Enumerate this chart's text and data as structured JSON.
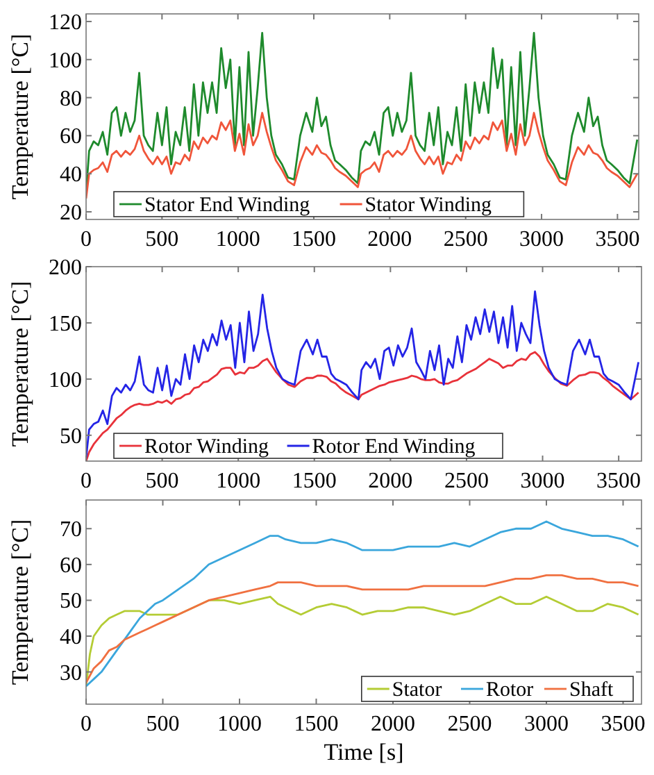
{
  "chart_data": [
    {
      "type": "line",
      "ylabel": "Temperature [°C]",
      "xlim": [
        0,
        3640
      ],
      "xticks": [
        0,
        500,
        1000,
        1500,
        2000,
        2500,
        3000,
        3500
      ],
      "ylim": [
        16,
        124
      ],
      "yticks": [
        20,
        40,
        60,
        80,
        100,
        120
      ],
      "legend": "bottom left",
      "x": [
        0,
        20,
        50,
        80,
        110,
        140,
        170,
        200,
        230,
        260,
        290,
        320,
        350,
        380,
        410,
        440,
        470,
        500,
        530,
        560,
        590,
        620,
        650,
        680,
        710,
        740,
        770,
        800,
        830,
        860,
        890,
        920,
        950,
        980,
        1010,
        1040,
        1070,
        1100,
        1130,
        1160,
        1190,
        1220,
        1250,
        1290,
        1330,
        1370,
        1410,
        1450,
        1490,
        1520,
        1550,
        1580,
        1610,
        1640,
        1670,
        1710,
        1750,
        1790,
        1810,
        1840,
        1870,
        1900,
        1930,
        1960,
        1990,
        2020,
        2050,
        2080,
        2110,
        2140,
        2170,
        2200,
        2230,
        2260,
        2290,
        2320,
        2350,
        2380,
        2410,
        2440,
        2470,
        2500,
        2530,
        2560,
        2590,
        2620,
        2650,
        2680,
        2710,
        2740,
        2770,
        2800,
        2830,
        2860,
        2890,
        2920,
        2950,
        2980,
        3010,
        3040,
        3080,
        3120,
        3160,
        3200,
        3240,
        3280,
        3310,
        3340,
        3370,
        3400,
        3430,
        3460,
        3500,
        3540,
        3580,
        3630
      ],
      "series": [
        {
          "name": "Stator End Winding",
          "color": "#1e8a2c",
          "values": [
            30,
            52,
            57,
            55,
            62,
            50,
            72,
            75,
            60,
            72,
            62,
            68,
            93,
            60,
            55,
            52,
            72,
            55,
            75,
            45,
            62,
            55,
            75,
            52,
            87,
            60,
            88,
            72,
            88,
            72,
            106,
            85,
            100,
            55,
            96,
            55,
            104,
            60,
            85,
            114,
            80,
            60,
            50,
            45,
            38,
            37,
            60,
            72,
            62,
            80,
            65,
            70,
            55,
            47,
            45,
            42,
            38,
            35,
            52,
            57,
            55,
            62,
            50,
            72,
            75,
            60,
            72,
            62,
            68,
            93,
            60,
            55,
            52,
            72,
            55,
            75,
            45,
            62,
            55,
            75,
            52,
            87,
            60,
            88,
            72,
            88,
            72,
            106,
            85,
            100,
            55,
            96,
            55,
            104,
            60,
            85,
            114,
            80,
            60,
            50,
            45,
            38,
            37,
            60,
            72,
            62,
            80,
            65,
            70,
            55,
            47,
            45,
            42,
            38,
            35,
            58
          ]
        },
        {
          "name": "Stator Winding",
          "color": "#f0553a",
          "values": [
            27,
            40,
            42,
            43,
            46,
            41,
            50,
            52,
            49,
            52,
            50,
            53,
            60,
            52,
            48,
            45,
            49,
            45,
            49,
            40,
            46,
            45,
            50,
            47,
            57,
            53,
            59,
            56,
            60,
            58,
            67,
            63,
            68,
            52,
            61,
            50,
            66,
            55,
            60,
            72,
            62,
            54,
            47,
            42,
            36,
            34,
            46,
            54,
            50,
            55,
            51,
            50,
            47,
            43,
            41,
            39,
            36,
            33,
            40,
            42,
            43,
            46,
            41,
            50,
            52,
            49,
            52,
            50,
            53,
            60,
            52,
            48,
            45,
            49,
            45,
            49,
            40,
            46,
            45,
            50,
            47,
            57,
            53,
            59,
            56,
            60,
            58,
            67,
            63,
            68,
            52,
            61,
            50,
            66,
            55,
            60,
            72,
            62,
            54,
            47,
            42,
            36,
            34,
            46,
            54,
            50,
            55,
            51,
            50,
            47,
            43,
            41,
            39,
            36,
            33,
            40
          ]
        }
      ]
    },
    {
      "type": "line",
      "ylabel": "Temperature [°C]",
      "xlim": [
        0,
        3650
      ],
      "xticks": [
        0,
        500,
        1000,
        1500,
        2000,
        2500,
        3000,
        3500
      ],
      "ylim": [
        27,
        200
      ],
      "yticks": [
        50,
        100,
        150,
        200
      ],
      "legend": "bottom left",
      "x": [
        0,
        20,
        50,
        80,
        110,
        140,
        170,
        200,
        230,
        260,
        290,
        320,
        350,
        380,
        410,
        440,
        470,
        500,
        530,
        560,
        590,
        620,
        650,
        680,
        710,
        740,
        770,
        800,
        830,
        860,
        890,
        920,
        950,
        980,
        1010,
        1040,
        1070,
        1100,
        1130,
        1160,
        1190,
        1220,
        1250,
        1290,
        1330,
        1370,
        1410,
        1450,
        1490,
        1520,
        1550,
        1580,
        1610,
        1640,
        1670,
        1710,
        1750,
        1790,
        1810,
        1840,
        1870,
        1900,
        1930,
        1960,
        1990,
        2020,
        2050,
        2080,
        2110,
        2140,
        2170,
        2200,
        2230,
        2260,
        2290,
        2320,
        2350,
        2380,
        2410,
        2440,
        2470,
        2500,
        2530,
        2560,
        2590,
        2620,
        2650,
        2680,
        2710,
        2740,
        2770,
        2800,
        2830,
        2860,
        2890,
        2920,
        2950,
        2980,
        3010,
        3040,
        3080,
        3120,
        3160,
        3200,
        3240,
        3280,
        3310,
        3340,
        3370,
        3400,
        3430,
        3460,
        3500,
        3540,
        3580,
        3630
      ],
      "series": [
        {
          "name": "Rotor Winding",
          "color": "#e8323a",
          "values": [
            27,
            35,
            42,
            47,
            52,
            55,
            60,
            65,
            68,
            72,
            75,
            77,
            78,
            77,
            77,
            78,
            80,
            79,
            81,
            78,
            82,
            83,
            86,
            87,
            92,
            93,
            97,
            98,
            101,
            104,
            109,
            110,
            110,
            104,
            106,
            105,
            110,
            110,
            112,
            116,
            118,
            112,
            106,
            100,
            95,
            93,
            98,
            101,
            101,
            103,
            103,
            102,
            98,
            96,
            92,
            88,
            85,
            82,
            86,
            88,
            90,
            92,
            94,
            95,
            97,
            98,
            99,
            100,
            101,
            103,
            102,
            100,
            99,
            99,
            100,
            97,
            96,
            96,
            98,
            99,
            102,
            105,
            107,
            109,
            112,
            115,
            118,
            116,
            114,
            110,
            112,
            112,
            116,
            118,
            117,
            122,
            124,
            120,
            113,
            107,
            101,
            96,
            94,
            99,
            103,
            104,
            106,
            106,
            105,
            101,
            98,
            94,
            90,
            86,
            82,
            88
          ]
        },
        {
          "name": "Rotor End Winding",
          "color": "#2424e6",
          "values": [
            30,
            55,
            60,
            62,
            72,
            60,
            85,
            92,
            88,
            95,
            90,
            98,
            120,
            95,
            90,
            88,
            110,
            90,
            112,
            85,
            100,
            95,
            122,
            100,
            130,
            115,
            135,
            125,
            140,
            130,
            152,
            135,
            148,
            110,
            150,
            115,
            160,
            125,
            140,
            175,
            145,
            125,
            110,
            100,
            97,
            95,
            125,
            135,
            122,
            135,
            120,
            120,
            105,
            100,
            98,
            95,
            88,
            82,
            108,
            115,
            110,
            118,
            100,
            125,
            128,
            112,
            130,
            120,
            128,
            145,
            115,
            108,
            100,
            125,
            108,
            130,
            95,
            118,
            110,
            138,
            115,
            148,
            135,
            155,
            140,
            162,
            142,
            160,
            132,
            155,
            128,
            165,
            125,
            150,
            140,
            132,
            178,
            148,
            125,
            110,
            100,
            97,
            95,
            125,
            135,
            122,
            135,
            120,
            120,
            105,
            100,
            98,
            95,
            88,
            82,
            115
          ]
        }
      ]
    },
    {
      "type": "line",
      "ylabel": "Temperature [°C]",
      "xlabel": "Time [s]",
      "xlim": [
        0,
        3620
      ],
      "xticks": [
        0,
        500,
        1000,
        1500,
        2000,
        2500,
        3000,
        3500
      ],
      "ylim": [
        21,
        78
      ],
      "yticks": [
        30,
        40,
        50,
        60,
        70
      ],
      "legend": "bottom right",
      "x": [
        0,
        25,
        50,
        100,
        150,
        200,
        250,
        300,
        350,
        400,
        450,
        500,
        600,
        700,
        800,
        900,
        1000,
        1100,
        1200,
        1250,
        1300,
        1400,
        1500,
        1600,
        1700,
        1800,
        1900,
        2000,
        2100,
        2200,
        2300,
        2400,
        2500,
        2600,
        2700,
        2800,
        2900,
        3000,
        3100,
        3200,
        3300,
        3400,
        3500,
        3600
      ],
      "series": [
        {
          "name": "Stator",
          "color": "#b4cc34",
          "values": [
            26,
            35,
            40,
            43,
            45,
            46,
            47,
            47,
            47,
            46,
            46,
            46,
            46,
            48,
            50,
            50,
            49,
            50,
            51,
            49,
            48,
            46,
            48,
            49,
            48,
            46,
            47,
            47,
            48,
            48,
            47,
            46,
            47,
            49,
            51,
            49,
            49,
            51,
            49,
            47,
            47,
            49,
            48,
            46
          ]
        },
        {
          "name": "Rotor",
          "color": "#3aa6dc",
          "values": [
            26,
            27,
            28,
            30,
            33,
            36,
            39,
            42,
            45,
            47,
            49,
            50,
            53,
            56,
            60,
            62,
            64,
            66,
            68,
            68,
            67,
            66,
            66,
            67,
            66,
            64,
            64,
            64,
            65,
            65,
            65,
            66,
            65,
            67,
            69,
            70,
            70,
            72,
            70,
            69,
            68,
            68,
            67,
            65
          ]
        },
        {
          "name": "Shaft",
          "color": "#f07040",
          "values": [
            27,
            29,
            31,
            33,
            36,
            37,
            39,
            40,
            41,
            42,
            43,
            44,
            46,
            48,
            50,
            51,
            52,
            53,
            54,
            55,
            55,
            55,
            54,
            54,
            54,
            53,
            53,
            53,
            53,
            54,
            54,
            54,
            54,
            54,
            55,
            56,
            56,
            57,
            57,
            56,
            56,
            55,
            55,
            54
          ]
        }
      ]
    }
  ]
}
